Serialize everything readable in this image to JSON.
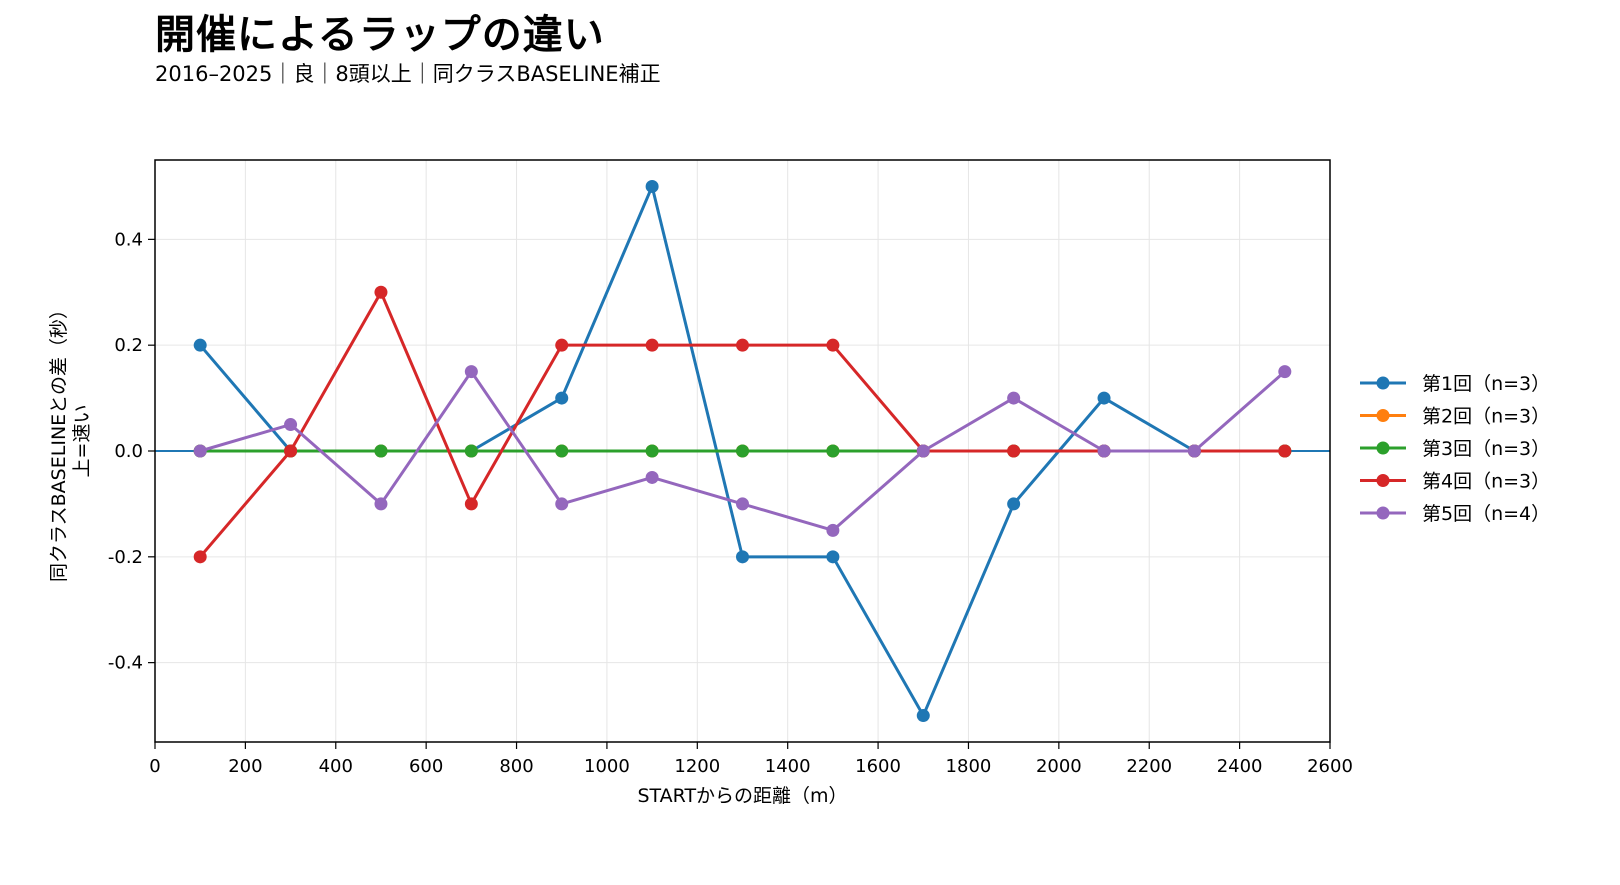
{
  "header": {
    "title": "開催によるラップの違い",
    "subtitle": "2016–2025｜良｜8頭以上｜同クラスBASELINE補正"
  },
  "chart_data": {
    "type": "line",
    "title": "開催によるラップの違い",
    "subtitle": "2016–2025｜良｜8頭以上｜同クラスBASELINE補正",
    "xlabel": "STARTからの距離（m）",
    "ylabel_lines": [
      "同クラスBASELINEとの差（秒）",
      "上=速い"
    ],
    "xlim": [
      0,
      2600
    ],
    "ylim": [
      -0.55,
      0.55
    ],
    "xticks": [
      0,
      200,
      400,
      600,
      800,
      1000,
      1200,
      1400,
      1600,
      1800,
      2000,
      2200,
      2400,
      2600
    ],
    "yticks": [
      -0.4,
      -0.2,
      0.0,
      0.2,
      0.4
    ],
    "ytick_labels": [
      "-0.4",
      "-0.2",
      "0.0",
      "0.2",
      "0.4"
    ],
    "grid": true,
    "zero_line_color": "#1f77b4",
    "legend_position": "right",
    "x": [
      100,
      300,
      500,
      700,
      900,
      1100,
      1300,
      1500,
      1700,
      1900,
      2100,
      2300,
      2500
    ],
    "series": [
      {
        "name": "第1回（n=3）",
        "color": "#1f77b4",
        "values": [
          0.2,
          0.0,
          0.0,
          0.0,
          0.1,
          0.5,
          -0.2,
          -0.2,
          -0.5,
          -0.1,
          0.1,
          0.0,
          0.0
        ]
      },
      {
        "name": "第2回（n=3）",
        "color": "#ff7f0e",
        "values": [
          0.0,
          0.0,
          0.0,
          0.0,
          0.0,
          0.0,
          0.0,
          0.0,
          0.0,
          0.0,
          0.0,
          0.0,
          0.0
        ]
      },
      {
        "name": "第3回（n=3）",
        "color": "#2ca02c",
        "values": [
          0.0,
          0.0,
          0.0,
          0.0,
          0.0,
          0.0,
          0.0,
          0.0,
          0.0,
          0.0,
          0.0,
          0.0,
          0.0
        ]
      },
      {
        "name": "第4回（n=3）",
        "color": "#d62728",
        "values": [
          -0.2,
          0.0,
          0.3,
          -0.1,
          0.2,
          0.2,
          0.2,
          0.2,
          0.0,
          0.0,
          0.0,
          0.0,
          0.0
        ]
      },
      {
        "name": "第5回（n=4）",
        "color": "#9467bd",
        "values": [
          0.0,
          0.05,
          -0.1,
          0.15,
          -0.1,
          -0.05,
          -0.1,
          -0.15,
          0.0,
          0.1,
          0.0,
          0.0,
          0.15
        ]
      }
    ]
  }
}
